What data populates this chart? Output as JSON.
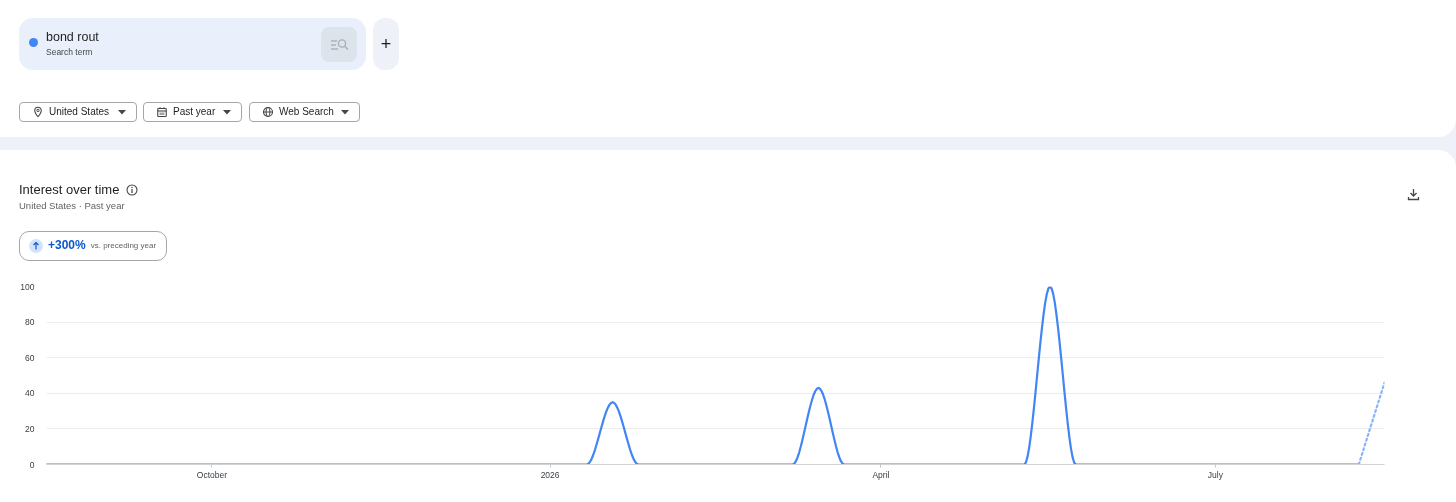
{
  "chart_data": {
    "type": "line",
    "title": "Interest over time",
    "subtitle": "United States · Past year",
    "annotations": [
      "Search term",
      "+",
      "United States",
      "Past year",
      "Web Search",
      "+300%",
      "vs. preceding year"
    ],
    "xlim": [
      "2025-08-17",
      "2026-08-16"
    ],
    "xticks": [
      {
        "value": "2025-10-01",
        "label": "October"
      },
      {
        "value": "2026-01-01",
        "label": "2026"
      },
      {
        "value": "2026-04-01",
        "label": "April"
      },
      {
        "value": "2026-07-01",
        "label": "July"
      }
    ],
    "ylim": [
      0,
      100
    ],
    "yticks": [
      0,
      20,
      40,
      60,
      80,
      100
    ],
    "grid": "y",
    "legend": "top left",
    "series": [
      {
        "name": "bond rout",
        "color": "#4285f4",
        "x": [
          "2025-08-17",
          "2025-08-24",
          "2025-08-31",
          "2025-09-07",
          "2025-09-14",
          "2025-09-21",
          "2025-09-28",
          "2025-10-05",
          "2025-10-12",
          "2025-10-19",
          "2025-10-26",
          "2025-11-02",
          "2025-11-09",
          "2025-11-16",
          "2025-11-23",
          "2025-11-30",
          "2025-12-07",
          "2025-12-14",
          "2025-12-21",
          "2025-12-28",
          "2026-01-04",
          "2026-01-11",
          "2026-01-18",
          "2026-01-25",
          "2026-02-01",
          "2026-02-08",
          "2026-02-15",
          "2026-02-22",
          "2026-03-01",
          "2026-03-08",
          "2026-03-15",
          "2026-03-22",
          "2026-03-29",
          "2026-04-05",
          "2026-04-12",
          "2026-04-19",
          "2026-04-26",
          "2026-05-03",
          "2026-05-10",
          "2026-05-17",
          "2026-05-24",
          "2026-05-31",
          "2026-06-07",
          "2026-06-14",
          "2026-06-21",
          "2026-06-28",
          "2026-07-05",
          "2026-07-12",
          "2026-07-19",
          "2026-07-26",
          "2026-08-02",
          "2026-08-09"
        ],
        "values": [
          0,
          0,
          0,
          0,
          0,
          0,
          0,
          0,
          0,
          0,
          0,
          0,
          0,
          0,
          0,
          0,
          0,
          0,
          0,
          0,
          0,
          0,
          35,
          0,
          0,
          0,
          0,
          0,
          0,
          0,
          43,
          0,
          0,
          0,
          0,
          0,
          0,
          0,
          0,
          100,
          0,
          0,
          0,
          0,
          0,
          0,
          0,
          0,
          0,
          0,
          0,
          0
        ]
      },
      {
        "color": "#8ab4f8",
        "line_style": "dotted",
        "x": [
          "2026-08-09",
          "2026-08-16"
        ],
        "values": [
          0,
          46
        ]
      }
    ]
  }
}
